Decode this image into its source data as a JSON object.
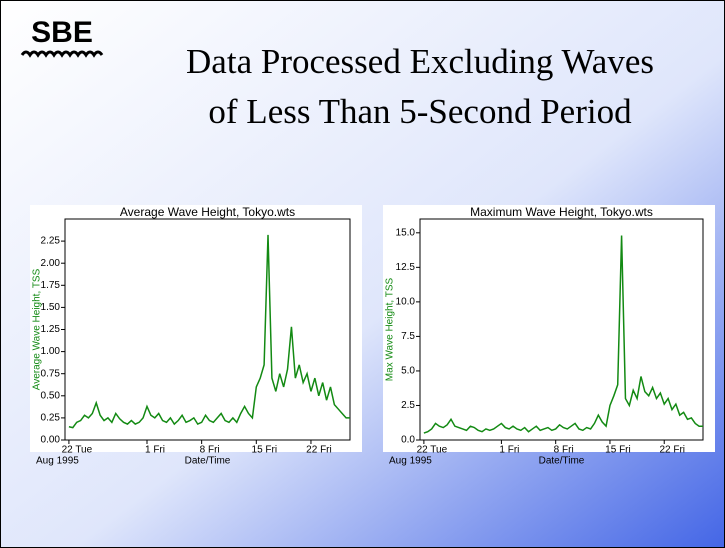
{
  "logo": "SBE",
  "title_lines": [
    "Data Processed Excluding Waves",
    "of Less Than 5-Second Period"
  ],
  "chart_data": [
    {
      "type": "line",
      "title": "Average Wave Height, Tokyo.wts",
      "y_label": "Average Wave Height, TSS",
      "x_label": "Date/Time",
      "date_note": "Aug 1995",
      "xlim": [
        -0.5,
        36
      ],
      "xticks": [
        {
          "value": 0,
          "label": "22 Tue"
        },
        {
          "value": 10,
          "label": "1 Fri"
        },
        {
          "value": 17,
          "label": "8 Fri"
        },
        {
          "value": 24,
          "label": "15 Fri"
        },
        {
          "value": 31,
          "label": "22 Fri"
        }
      ],
      "ylim": [
        0,
        2.5
      ],
      "yticks": [
        {
          "value": 0,
          "label": "0.00"
        },
        0.25,
        {
          "value": 0.5,
          "label": "0.50"
        },
        0.75,
        {
          "value": 1,
          "label": "1.00"
        },
        1.25,
        {
          "value": 1.5,
          "label": "1.50"
        },
        1.75,
        {
          "value": 2,
          "label": "2.00"
        },
        2.25
      ],
      "series": [
        {
          "color": "#138a13",
          "x": [
            0,
            0.5,
            1,
            1.5,
            2,
            2.5,
            3,
            3.5,
            4,
            4.5,
            5,
            5.5,
            6,
            6.5,
            7,
            7.5,
            8,
            8.5,
            9,
            9.5,
            10,
            10.5,
            11,
            11.5,
            12,
            12.5,
            13,
            13.5,
            14,
            14.5,
            15,
            15.5,
            16,
            16.5,
            17,
            17.5,
            18,
            18.5,
            19,
            19.5,
            20,
            20.5,
            21,
            21.5,
            22,
            22.5,
            23,
            23.5,
            24,
            24.5,
            25,
            25.5,
            26,
            26.5,
            27,
            27.5,
            28,
            28.5,
            29,
            29.5,
            30,
            30.5,
            31,
            31.5,
            32,
            32.5,
            33,
            33.5,
            34,
            34.5,
            35,
            35.5,
            36
          ],
          "values": [
            0.15,
            0.14,
            0.2,
            0.22,
            0.28,
            0.25,
            0.3,
            0.42,
            0.28,
            0.22,
            0.25,
            0.2,
            0.3,
            0.24,
            0.2,
            0.18,
            0.22,
            0.18,
            0.2,
            0.25,
            0.38,
            0.28,
            0.25,
            0.3,
            0.22,
            0.2,
            0.25,
            0.18,
            0.22,
            0.28,
            0.2,
            0.22,
            0.25,
            0.18,
            0.2,
            0.28,
            0.22,
            0.2,
            0.25,
            0.3,
            0.22,
            0.2,
            0.25,
            0.2,
            0.3,
            0.38,
            0.3,
            0.25,
            0.6,
            0.7,
            0.85,
            2.32,
            0.7,
            0.55,
            0.75,
            0.6,
            0.8,
            1.28,
            0.7,
            0.85,
            0.65,
            0.75,
            0.55,
            0.7,
            0.5,
            0.65,
            0.45,
            0.6,
            0.4,
            0.35,
            0.3,
            0.25,
            0.25
          ]
        }
      ]
    },
    {
      "type": "line",
      "title": "Maximum Wave Height, Tokyo.wts",
      "y_label": "Max Wave Height, TSS",
      "x_label": "Date/Time",
      "date_note": "Aug 1995",
      "xlim": [
        -0.5,
        36
      ],
      "xticks": [
        {
          "value": 0,
          "label": "22 Tue"
        },
        {
          "value": 10,
          "label": "1 Fri"
        },
        {
          "value": 17,
          "label": "8 Fri"
        },
        {
          "value": 24,
          "label": "15 Fri"
        },
        {
          "value": 31,
          "label": "22 Fri"
        }
      ],
      "ylim": [
        0,
        16
      ],
      "yticks": [
        {
          "value": 0,
          "label": "0.0"
        },
        2.5,
        {
          "value": 5,
          "label": "5.0"
        },
        7.5,
        {
          "value": 10,
          "label": "10.0"
        },
        12.5,
        {
          "value": 15,
          "label": "15.0"
        }
      ],
      "series": [
        {
          "color": "#138a13",
          "x": [
            0,
            0.5,
            1,
            1.5,
            2,
            2.5,
            3,
            3.5,
            4,
            4.5,
            5,
            5.5,
            6,
            6.5,
            7,
            7.5,
            8,
            8.5,
            9,
            9.5,
            10,
            10.5,
            11,
            11.5,
            12,
            12.5,
            13,
            13.5,
            14,
            14.5,
            15,
            15.5,
            16,
            16.5,
            17,
            17.5,
            18,
            18.5,
            19,
            19.5,
            20,
            20.5,
            21,
            21.5,
            22,
            22.5,
            23,
            23.5,
            24,
            24.5,
            25,
            25.5,
            26,
            26.5,
            27,
            27.5,
            28,
            28.5,
            29,
            29.5,
            30,
            30.5,
            31,
            31.5,
            32,
            32.5,
            33,
            33.5,
            34,
            34.5,
            35,
            35.5,
            36
          ],
          "values": [
            0.5,
            0.6,
            0.8,
            1.2,
            1.0,
            0.9,
            1.1,
            1.5,
            1.0,
            0.9,
            0.8,
            0.7,
            1.0,
            0.9,
            0.7,
            0.6,
            0.8,
            0.7,
            0.8,
            1.0,
            1.2,
            0.9,
            0.8,
            1.0,
            0.8,
            0.7,
            0.9,
            0.6,
            0.8,
            1.0,
            0.7,
            0.8,
            0.9,
            0.7,
            0.8,
            1.1,
            0.9,
            0.8,
            1.0,
            1.2,
            0.8,
            0.7,
            0.9,
            0.8,
            1.2,
            1.8,
            1.3,
            1.0,
            2.5,
            3.2,
            4.0,
            14.8,
            3.0,
            2.5,
            3.6,
            3.0,
            4.6,
            3.5,
            3.2,
            3.8,
            3.0,
            3.4,
            2.6,
            3.0,
            2.2,
            2.6,
            1.8,
            2.0,
            1.5,
            1.6,
            1.2,
            1.0,
            1.0
          ]
        }
      ]
    }
  ]
}
